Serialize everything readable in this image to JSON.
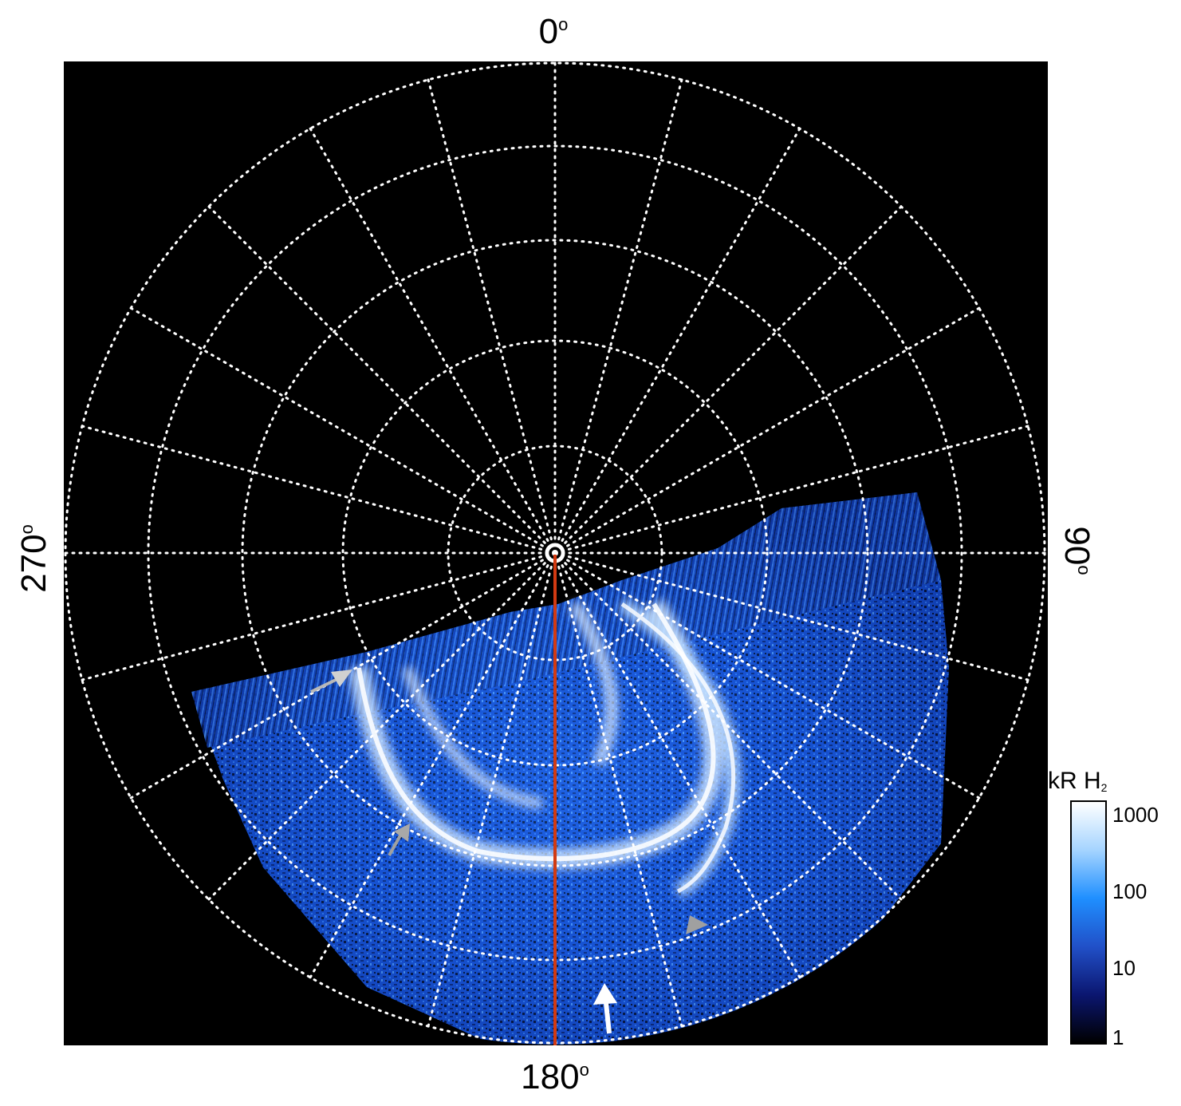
{
  "labels": {
    "top": "0",
    "bottom": "180",
    "left": "270",
    "right": "90",
    "degree_symbol": "o"
  },
  "colorbar": {
    "title_main": "kR H",
    "title_sub": "2",
    "ticks": [
      "1000",
      "100",
      "10",
      "1"
    ],
    "colors": [
      "#ffffff",
      "#a5d4ff",
      "#1f8fff",
      "#2150c8",
      "#0b1670",
      "#000000"
    ]
  },
  "image": {
    "meridian_color": "#d23a12",
    "aurora_color": "#2a74ff",
    "grid_color": "#ffffff",
    "arrow_white": "#ffffff",
    "arrow_gray": "#b0b0b0"
  }
}
